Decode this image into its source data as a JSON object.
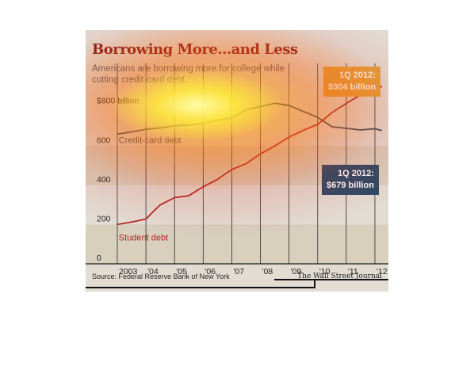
{
  "title": "Borrowing More...and Less",
  "subtitle": "Americans are borrowing more for college while cutting credit-card debt.",
  "source": "Source: Federal Reserve Bank of New York",
  "brand": "The Wall Street Journal",
  "callouts": {
    "student": {
      "line1": "1Q 2012:",
      "line2": "$904 billion"
    },
    "credit_card": {
      "line1": "1Q 2012:",
      "line2": "$679 billion"
    }
  },
  "colors": {
    "student": "#b3262a",
    "credit_card": "#3c4f63",
    "background": "#e2dcd3",
    "band": "#d8cfbd",
    "title": "#8b1d1d"
  },
  "chart_data": {
    "type": "line",
    "title": "Borrowing More...and Less",
    "subtitle": "Americans are borrowing more for college while cutting credit-card debt.",
    "xlabel": "",
    "ylabel": "",
    "y_tick_values": [
      0,
      200,
      400,
      600,
      800
    ],
    "y_tick_labels": [
      "0",
      "200",
      "400",
      "600",
      "$800 billion"
    ],
    "ylim": [
      0,
      940
    ],
    "x_tick_values": [
      2003,
      2004,
      2005,
      2006,
      2007,
      2008,
      2009,
      2010,
      2011,
      2012
    ],
    "x_tick_labels": [
      "2003",
      "'04",
      "'05",
      "'06",
      "'07",
      "'08",
      "'09",
      "'10",
      "'11",
      "'12"
    ],
    "xlim": [
      2003,
      2012.25
    ],
    "grid": "vertical",
    "series": [
      {
        "name": "Credit-card debt",
        "x": [
          2003,
          2003.5,
          2004,
          2004.5,
          2005,
          2005.5,
          2006,
          2006.5,
          2007,
          2007.5,
          2008,
          2008.5,
          2009,
          2009.5,
          2010,
          2010.5,
          2011,
          2011.5,
          2012,
          2012.25
        ],
        "values": [
          660,
          672,
          685,
          692,
          703,
          706,
          714,
          733,
          742,
          786,
          800,
          818,
          806,
          776,
          746,
          698,
          690,
          682,
          688,
          679
        ]
      },
      {
        "name": "Student debt",
        "x": [
          2003,
          2003.5,
          2004,
          2004.25,
          2004.5,
          2005,
          2005.5,
          2006,
          2006.5,
          2007,
          2007.5,
          2008,
          2008.5,
          2009,
          2009.5,
          2010,
          2010.5,
          2011,
          2011.5,
          2012,
          2012.25
        ],
        "values": [
          200,
          213,
          228,
          265,
          300,
          337,
          347,
          392,
          430,
          480,
          510,
          560,
          600,
          645,
          680,
          710,
          770,
          817,
          860,
          887,
          904
        ]
      }
    ]
  }
}
